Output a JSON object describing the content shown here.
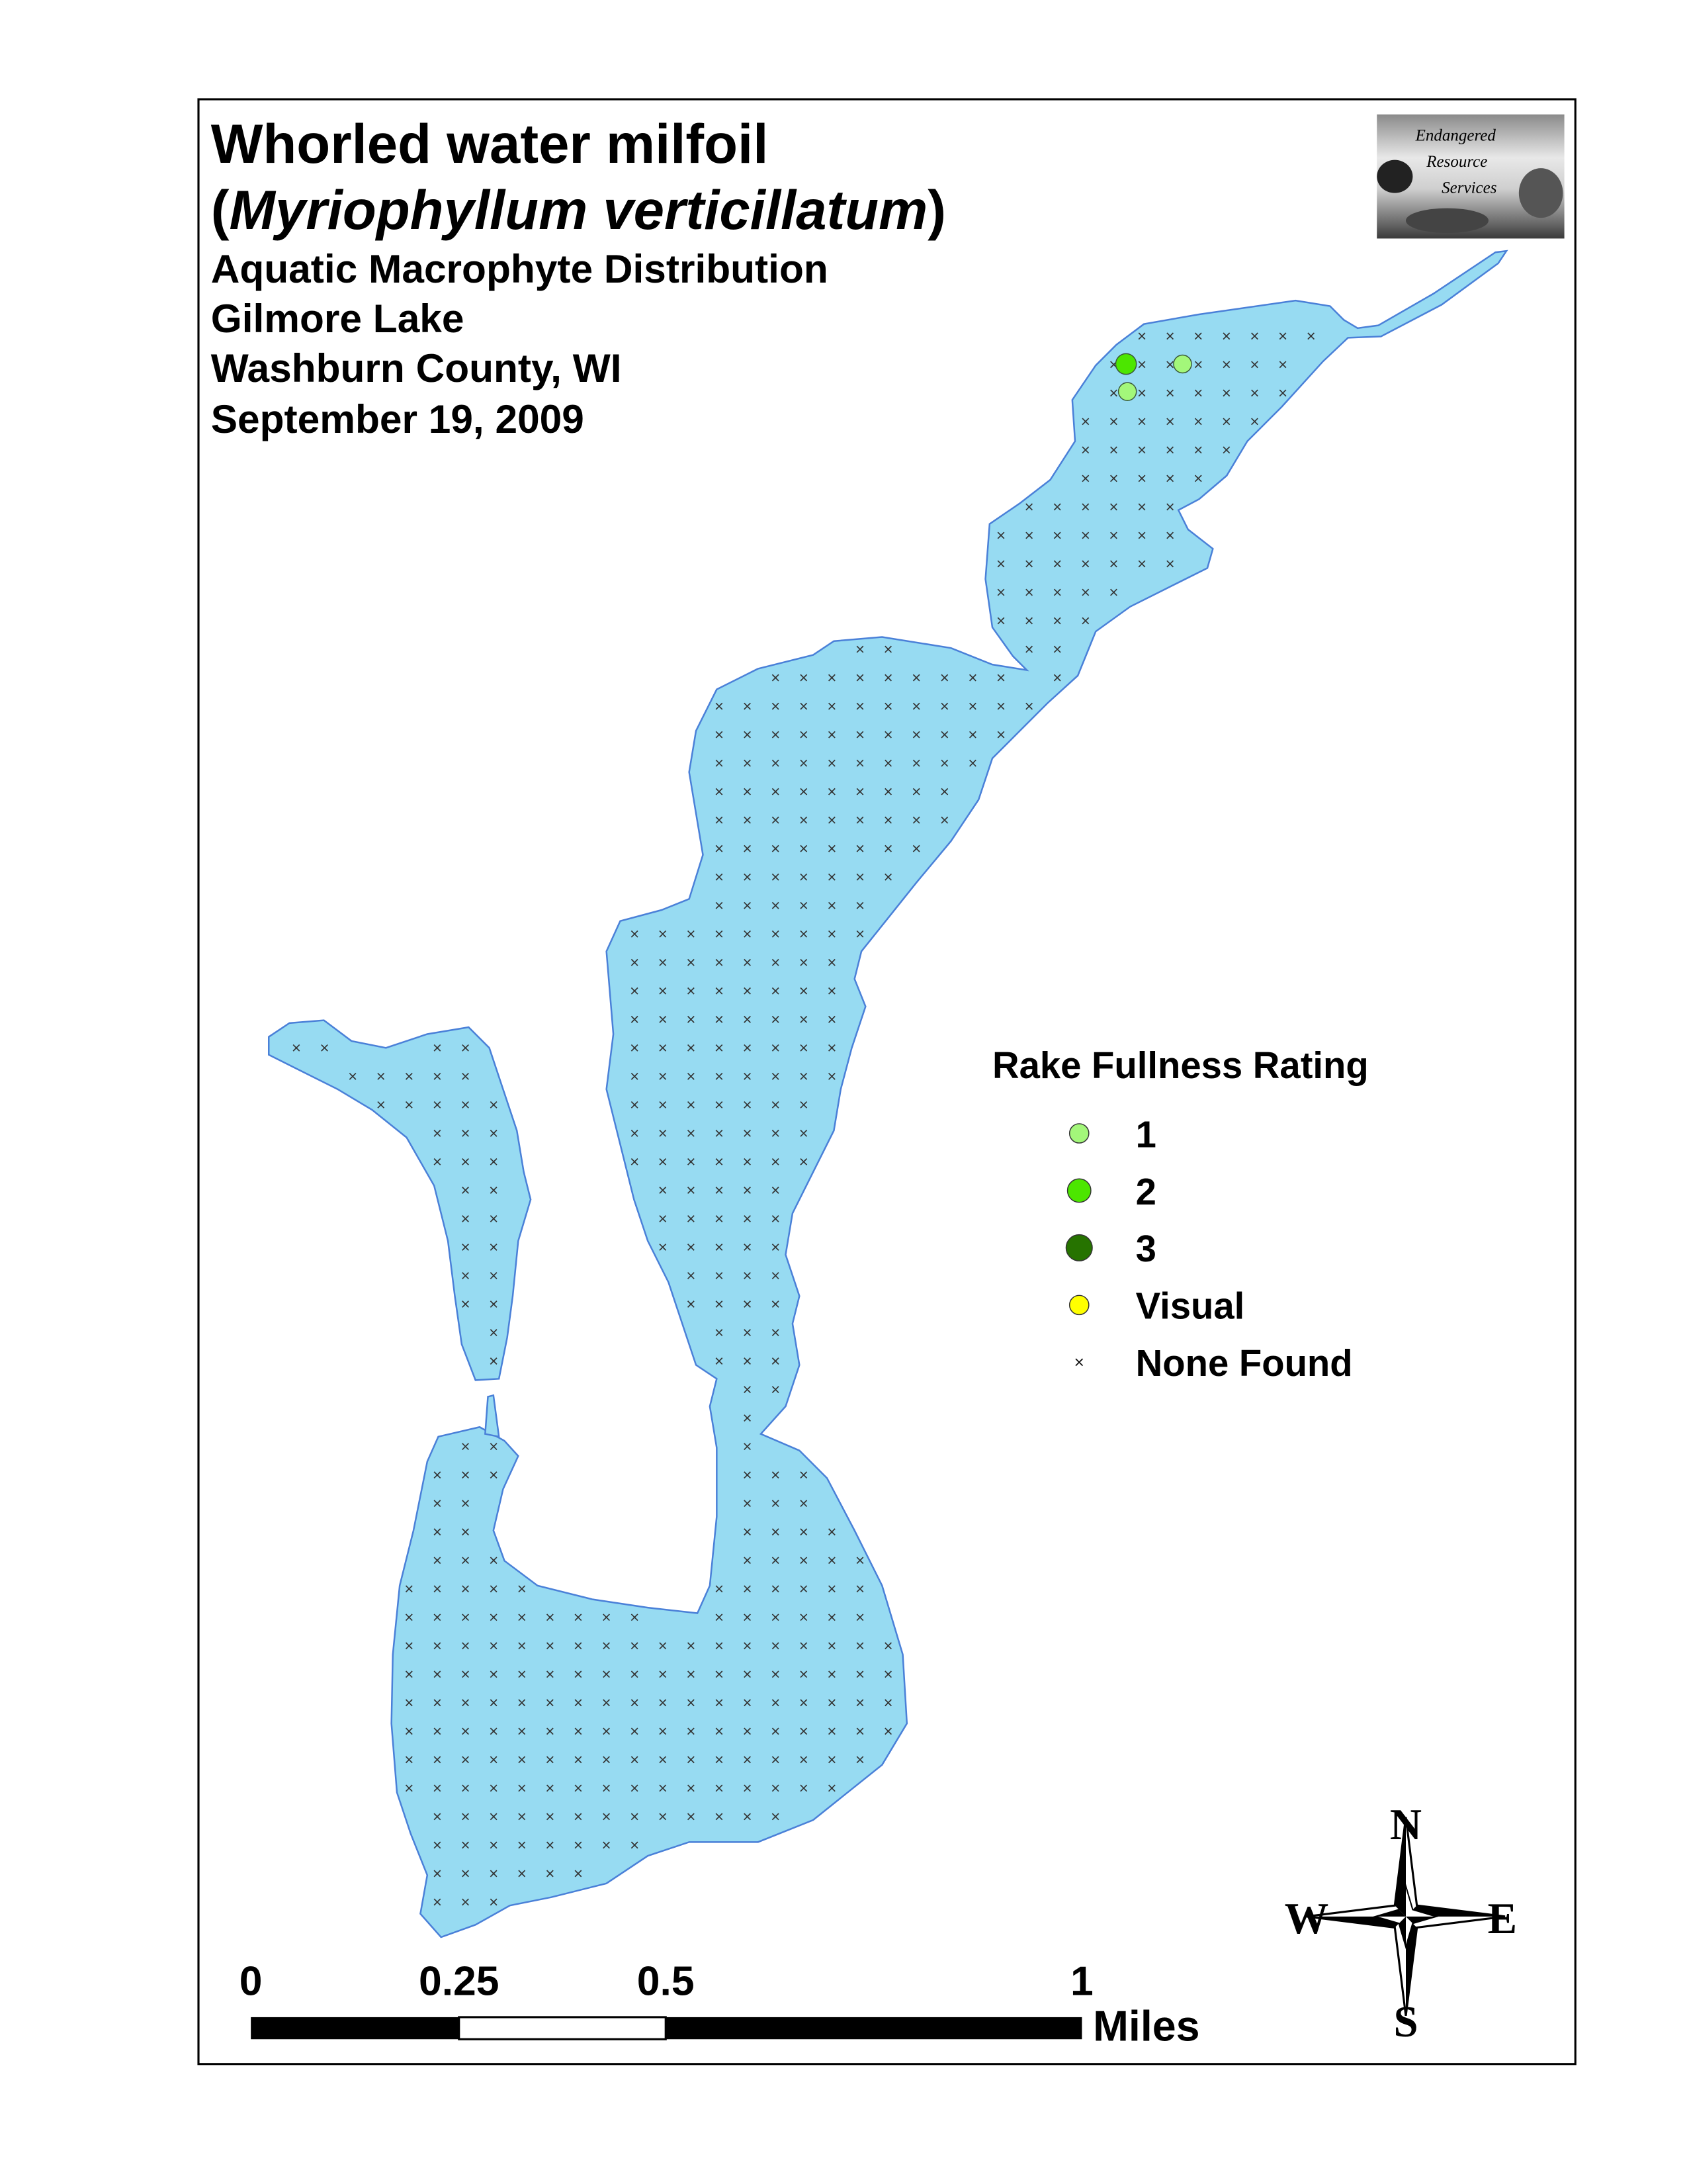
{
  "title": {
    "line1": "Whorled water milfoil",
    "line2_open": "(",
    "line2_species": "Myriophyllum verticillatum",
    "line2_close": ")",
    "subtitle": "Aquatic Macrophyte Distribution",
    "lake": "Gilmore Lake",
    "county": "Washburn County, WI",
    "date": "September 19, 2009"
  },
  "logo": {
    "line1": "Endangered",
    "line2": "Resource",
    "line3": "Services"
  },
  "colors": {
    "water": "#97dbf2",
    "shoreline": "#4a80d8",
    "rating_1": "#a3f77a",
    "rating_2": "#4ce600",
    "rating_3": "#267300",
    "visual": "#ffff00"
  },
  "legend": {
    "title": "Rake Fullness Rating",
    "items": [
      {
        "label": "1",
        "symbol": "circle",
        "color": "#a3f77a"
      },
      {
        "label": "2",
        "symbol": "circle",
        "color": "#4ce600"
      },
      {
        "label": "3",
        "symbol": "circle",
        "color": "#267300"
      },
      {
        "label": "Visual",
        "symbol": "circle",
        "color": "#ffff00"
      },
      {
        "label": "None Found",
        "symbol": "x-mark",
        "color": "#000000"
      }
    ]
  },
  "found_points": [
    {
      "rating": 2
    },
    {
      "rating": 1
    },
    {
      "rating": 1
    }
  ],
  "scale_bar": {
    "labels": [
      "0",
      "0.25",
      "0.5",
      "1"
    ],
    "unit": "Miles"
  },
  "north_arrow": {
    "n": "N",
    "s": "S",
    "w": "W",
    "e": "E"
  }
}
